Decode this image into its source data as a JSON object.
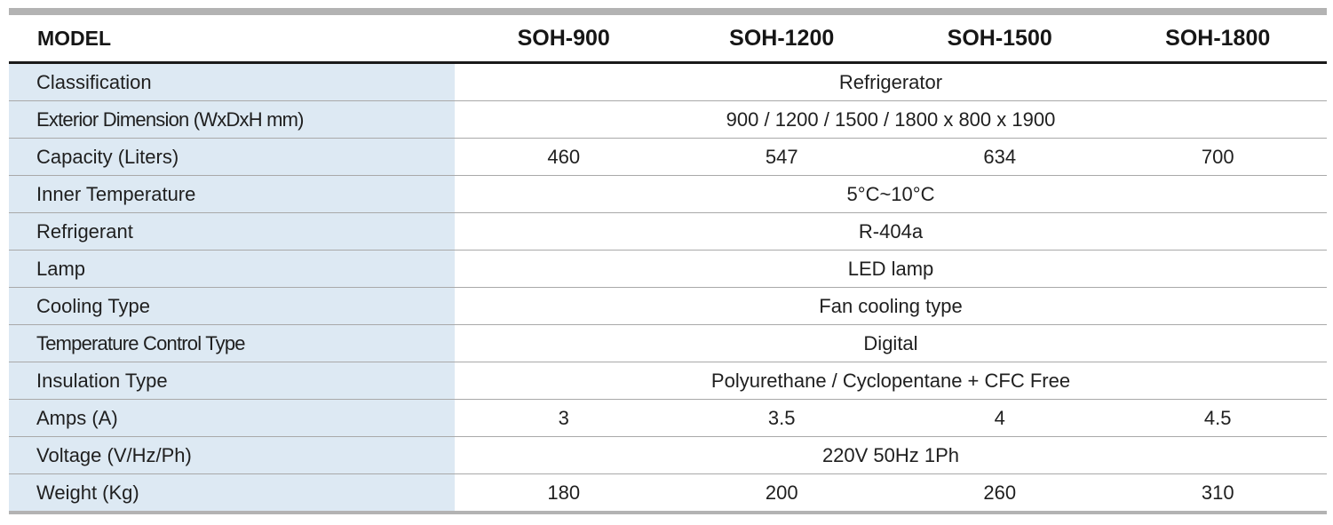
{
  "header": {
    "label": "MODEL",
    "models": [
      "SOH-900",
      "SOH-1200",
      "SOH-1500",
      "SOH-1800"
    ]
  },
  "rows": [
    {
      "label": "Classification",
      "value": "Refrigerator"
    },
    {
      "label": "Exterior Dimension (WxDxH mm)",
      "value": "900 / 1200 / 1500 / 1800 x 800 x 1900"
    },
    {
      "label": "Capacity (Liters)",
      "values": [
        "460",
        "547",
        "634",
        "700"
      ]
    },
    {
      "label": "Inner Temperature",
      "value": "5°C~10°C"
    },
    {
      "label": "Refrigerant",
      "value": "R-404a"
    },
    {
      "label": "Lamp",
      "value": "LED lamp"
    },
    {
      "label": "Cooling Type",
      "value": "Fan cooling type"
    },
    {
      "label": "Temperature Control Type",
      "value": "Digital"
    },
    {
      "label": "Insulation Type",
      "value": "Polyurethane / Cyclopentane + CFC Free"
    },
    {
      "label": "Amps (A)",
      "values": [
        "3",
        "3.5",
        "4",
        "4.5"
      ]
    },
    {
      "label": "Voltage (V/Hz/Ph)",
      "value": "220V 50Hz 1Ph"
    },
    {
      "label": "Weight (Kg)",
      "values": [
        "180",
        "200",
        "260",
        "310"
      ]
    }
  ],
  "colors": {
    "label_column_bg": "#dde9f3",
    "rule_gray": "#b3b3b3",
    "header_rule": "#1a1a1a"
  }
}
